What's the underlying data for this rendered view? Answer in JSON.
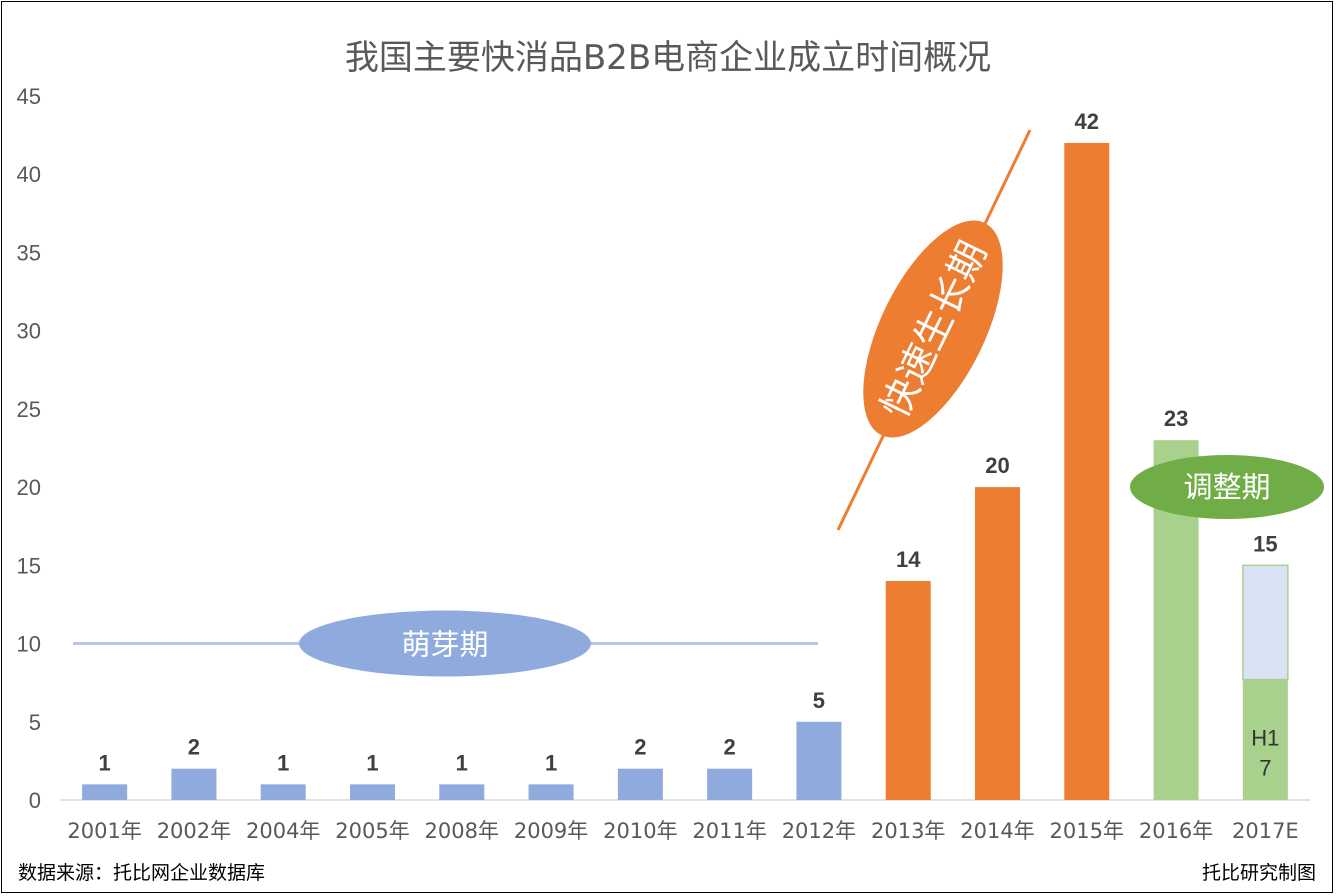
{
  "title": "我国主要快消品B2B电商企业成立时间概况",
  "source": "数据来源：托比网企业数据库",
  "credit": "托比研究制图",
  "colors": {
    "sprout": "#8faadc",
    "growth": "#ed7d31",
    "adjust": "#a9d18e",
    "adjust_dark": "#70ad47",
    "half_year": "#dae3f3"
  },
  "phases": [
    {
      "label": "萌芽期"
    },
    {
      "label": "快速生长期"
    },
    {
      "label": "调整期"
    }
  ],
  "chart_data": {
    "type": "bar",
    "title": "我国主要快消品B2B电商企业成立时间概况",
    "ylim": [
      0,
      45
    ],
    "yticks": [
      0,
      5,
      10,
      15,
      20,
      25,
      30,
      35,
      40,
      45
    ],
    "grid": false,
    "categories": [
      "2001年",
      "2002年",
      "2004年",
      "2005年",
      "2008年",
      "2009年",
      "2010年",
      "2011年",
      "2012年",
      "2013年",
      "2014年",
      "2015年",
      "2016年",
      "2017E"
    ],
    "values": [
      1,
      2,
      1,
      1,
      1,
      1,
      2,
      2,
      5,
      14,
      20,
      42,
      23,
      15
    ],
    "phase_of_bar": [
      "sprout",
      "sprout",
      "sprout",
      "sprout",
      "sprout",
      "sprout",
      "sprout",
      "sprout",
      "sprout",
      "growth",
      "growth",
      "growth",
      "adjust",
      "adjust"
    ],
    "segment_2017": {
      "label": "H17",
      "actual": 7.7,
      "estimated_total": 15
    }
  }
}
